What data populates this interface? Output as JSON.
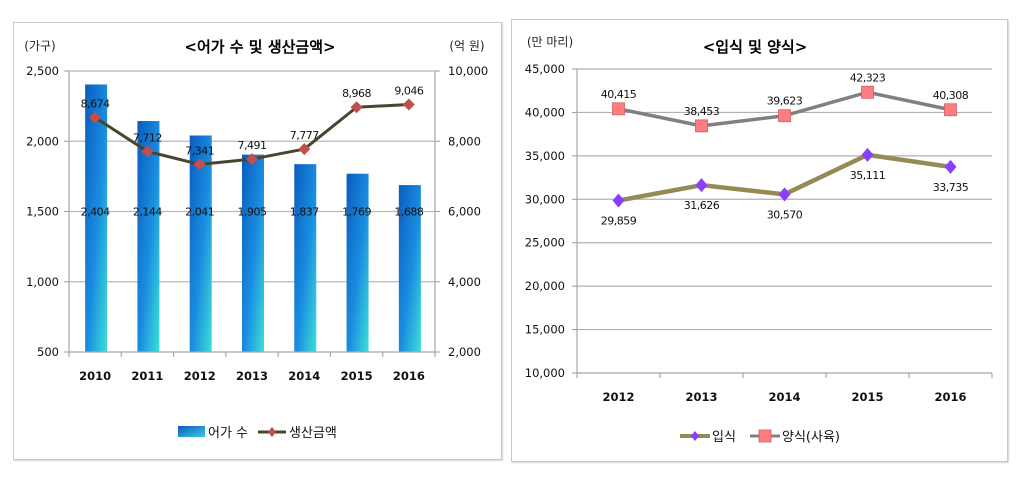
{
  "chart_data": [
    {
      "type": "bar+line",
      "title": "<어가 수 및 생산금액>",
      "ylabel_left": "(가구)",
      "ylabel_right": "(억 원)",
      "categories": [
        "2010",
        "2011",
        "2012",
        "2013",
        "2014",
        "2015",
        "2016"
      ],
      "ylim_left": [
        500,
        2500
      ],
      "yticks_left": [
        "2,500",
        "2,000",
        "1,500",
        "1,000",
        "500"
      ],
      "yticks_left_values": [
        2500,
        2000,
        1500,
        1000,
        500
      ],
      "ylim_right": [
        2000,
        10000
      ],
      "yticks_right": [
        "10,000",
        "8,000",
        "6,000",
        "4,000",
        "2,000"
      ],
      "yticks_right_values": [
        10000,
        8000,
        6000,
        4000,
        2000
      ],
      "grid": true,
      "legend_position": "bottom",
      "series": [
        {
          "name": "어가 수",
          "kind": "bar",
          "axis": "left",
          "values": [
            2404,
            2144,
            2041,
            1905,
            1837,
            1769,
            1688
          ],
          "labels": [
            "2,404",
            "2,144",
            "2,041",
            "1,905",
            "1,837",
            "1,769",
            "1,688"
          ],
          "color": "#1a7fd4"
        },
        {
          "name": "생산금액",
          "kind": "line",
          "axis": "right",
          "values": [
            8674,
            7712,
            7341,
            7491,
            7777,
            8968,
            9046
          ],
          "labels": [
            "8,674",
            "7,712",
            "7,341",
            "7,491",
            "7,777",
            "8,968",
            "9,046"
          ],
          "color": "#4a4530",
          "marker_color": "#c0504d"
        }
      ]
    },
    {
      "type": "line",
      "title": "<입식 및 양식>",
      "ylabel": "(만 마리)",
      "categories": [
        "2012",
        "2013",
        "2014",
        "2015",
        "2016"
      ],
      "ylim": [
        10000,
        45000
      ],
      "yticks": [
        "45,000",
        "40,000",
        "35,000",
        "30,000",
        "25,000",
        "20,000",
        "15,000",
        "10,000"
      ],
      "yticks_values": [
        45000,
        40000,
        35000,
        30000,
        25000,
        20000,
        15000,
        10000
      ],
      "grid": true,
      "legend_position": "bottom",
      "series": [
        {
          "name": "입식",
          "values": [
            29859,
            31626,
            30570,
            35111,
            33735
          ],
          "labels": [
            "29,859",
            "31,626",
            "30,570",
            "35,111",
            "33,735"
          ],
          "color": "#948a54",
          "marker_color": "#8a3ffc",
          "label_position": "below"
        },
        {
          "name": "양식(사육)",
          "values": [
            40415,
            38453,
            39623,
            42323,
            40308
          ],
          "labels": [
            "40,415",
            "38,453",
            "39,623",
            "42,323",
            "40,308"
          ],
          "color": "#808080",
          "marker_color": "#ff7c80",
          "label_position": "above"
        }
      ]
    }
  ]
}
